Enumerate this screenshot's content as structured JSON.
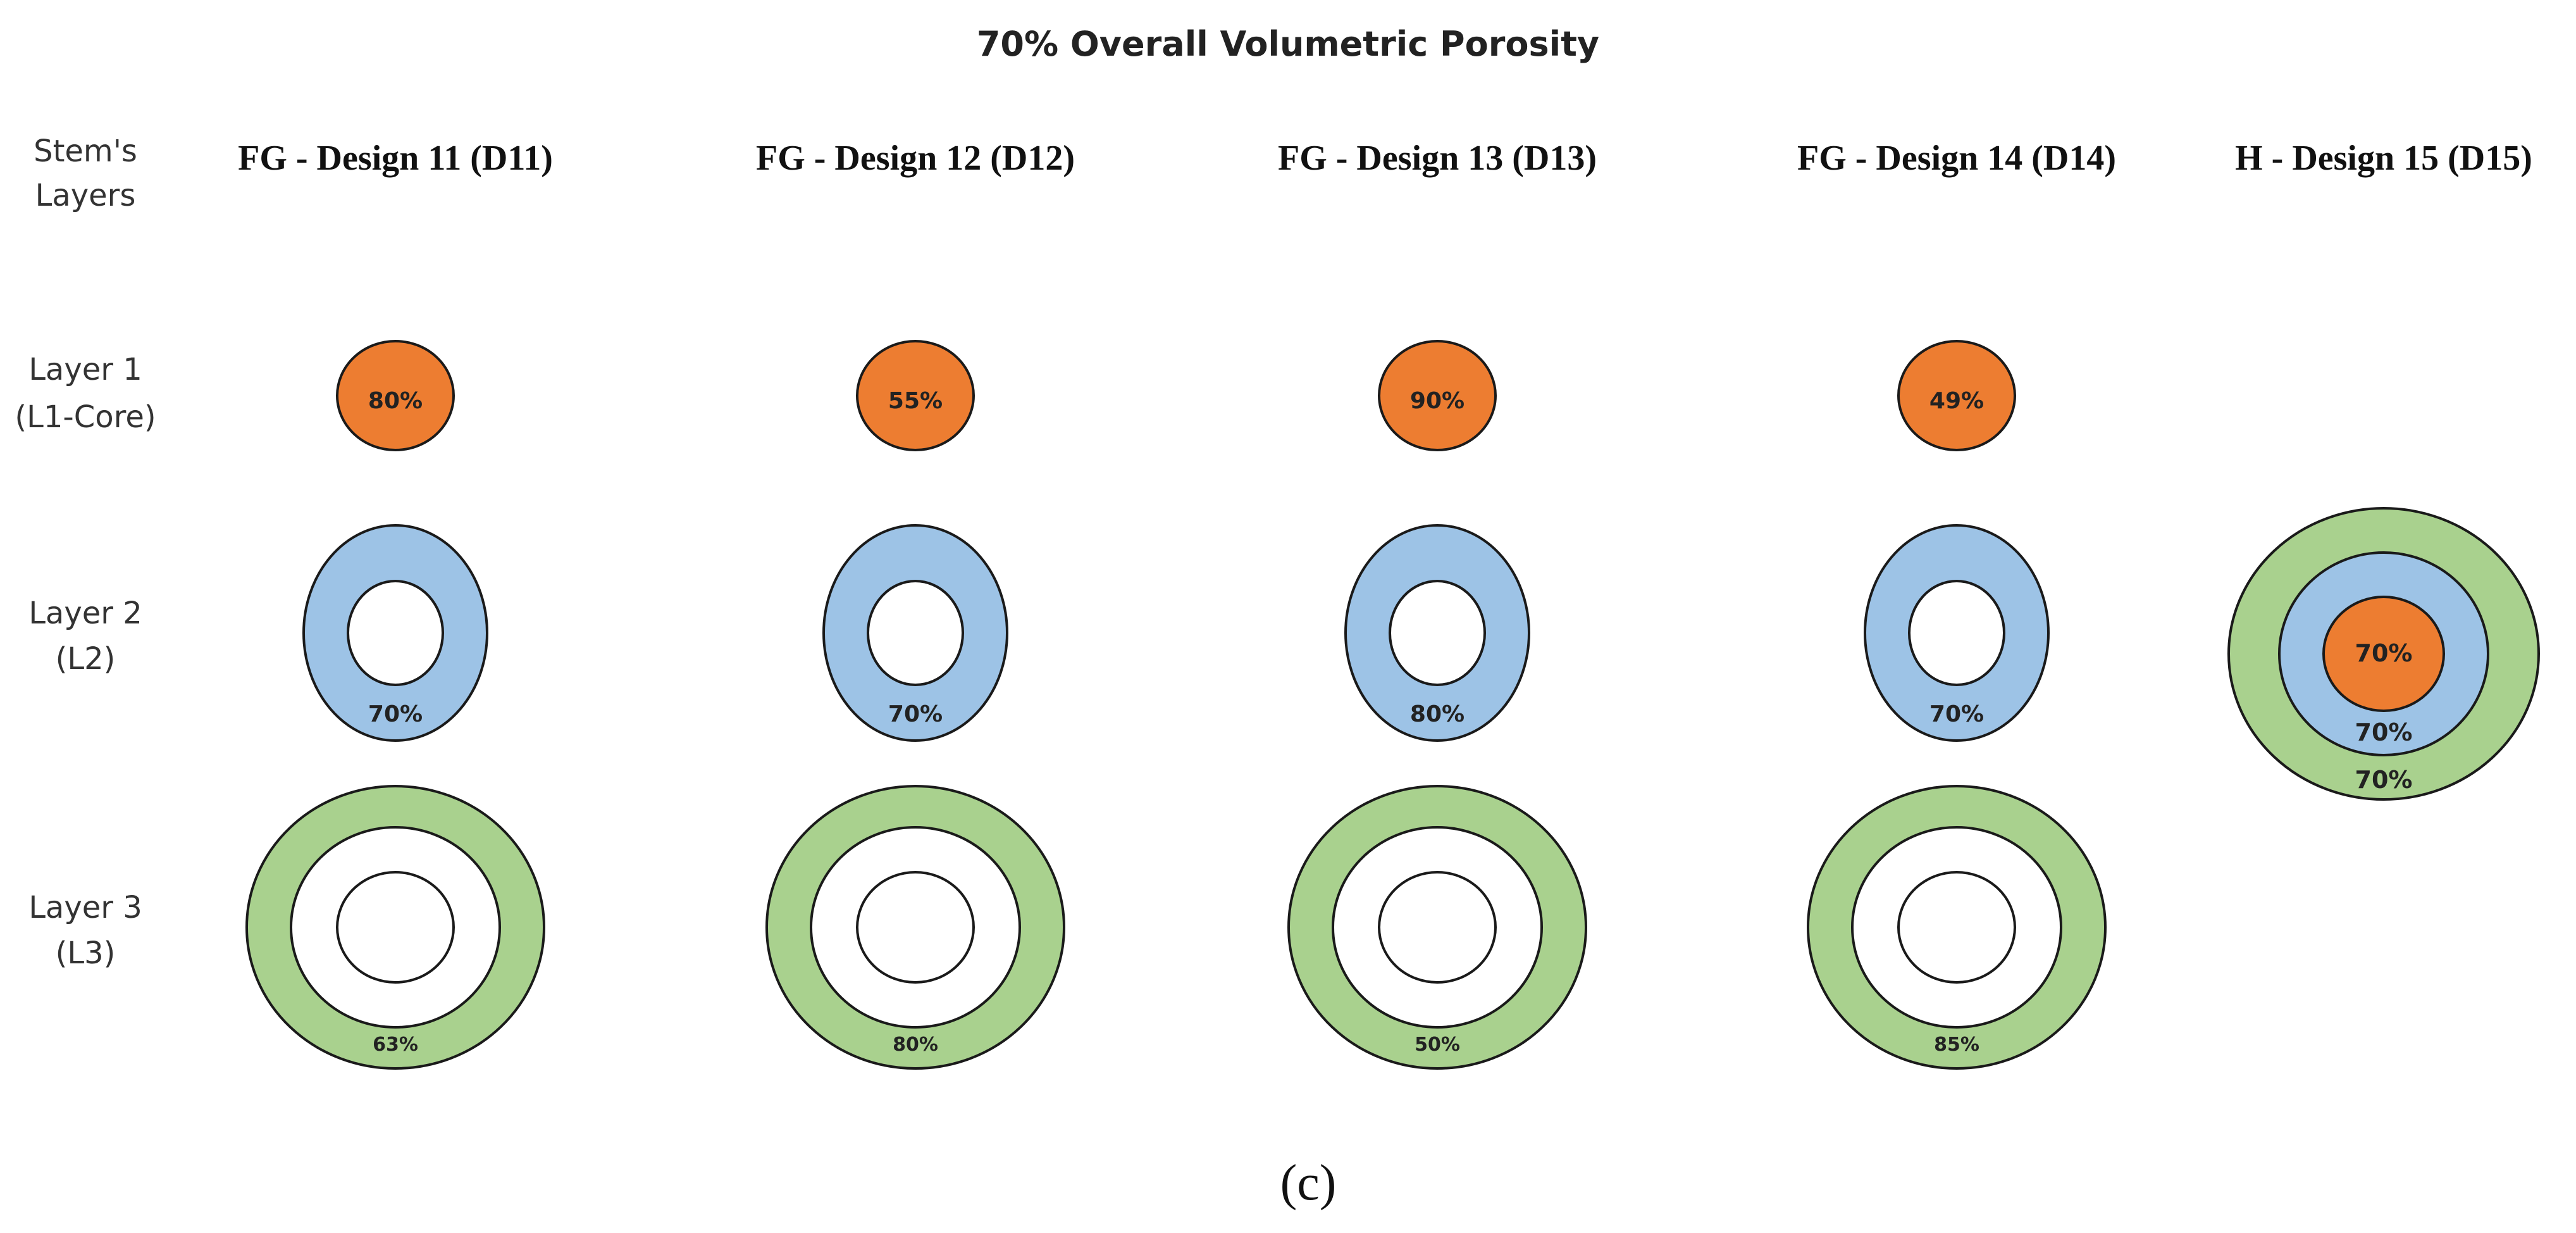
{
  "title": "70% Overall Volumetric Porosity",
  "caption": "(c)",
  "header": {
    "stem_line1": "Stem's",
    "stem_line2": "Layers"
  },
  "rows": [
    {
      "line1": "Layer 1",
      "line2": "(L1-Core)"
    },
    {
      "line1": "Layer 2",
      "line2": "(L2)"
    },
    {
      "line1": "Layer 3",
      "line2": "(L3)"
    }
  ],
  "designs": [
    {
      "name": "FG - Design 11 (D11)",
      "type": "FG",
      "l1": "80%",
      "l2": "70%",
      "l3": "63%"
    },
    {
      "name": "FG - Design 12 (D12)",
      "type": "FG",
      "l1": "55%",
      "l2": "70%",
      "l3": "80%"
    },
    {
      "name": "FG - Design 13 (D13)",
      "type": "FG",
      "l1": "90%",
      "l2": "80%",
      "l3": "50%"
    },
    {
      "name": "FG - Design 14 (D14)",
      "type": "FG",
      "l1": "49%",
      "l2": "70%",
      "l3": "85%"
    },
    {
      "name": "H - Design 15 (D15)",
      "type": "H",
      "l1": "70%",
      "l2": "70%",
      "l3": "70%"
    }
  ],
  "colors": {
    "core": "#ED7D31",
    "layer2": "#9DC3E6",
    "layer3": "#A9D18E",
    "outline": "#1a1a1a"
  }
}
